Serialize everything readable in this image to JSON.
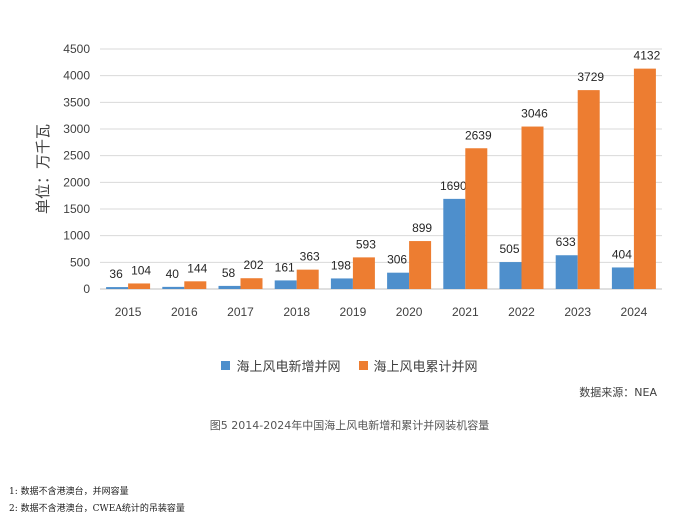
{
  "chart_data": {
    "type": "bar",
    "title": "",
    "xlabel": "",
    "ylabel": "单位：万千瓦",
    "ylim": [
      0,
      4500
    ],
    "yticks": [
      0,
      500,
      1000,
      1500,
      2000,
      2500,
      3000,
      3500,
      4000,
      4500
    ],
    "categories": [
      "2015",
      "2016",
      "2017",
      "2018",
      "2019",
      "2020",
      "2021",
      "2022",
      "2023",
      "2024"
    ],
    "series": [
      {
        "name": "海上风电新增并网",
        "color": "#4e8fcc",
        "values": [
          36,
          40,
          58,
          161,
          198,
          306,
          1690,
          505,
          633,
          404
        ]
      },
      {
        "name": "海上风电累计并网",
        "color": "#ed7d31",
        "values": [
          104,
          144,
          202,
          363,
          593,
          899,
          2639,
          3046,
          3729,
          4132
        ]
      }
    ],
    "grid": true,
    "legend_position": "bottom"
  },
  "source_note": "数据来源：NEA",
  "caption": "图5  2014-2024年中国海上风电新增和累计并网装机容量",
  "footnotes": [
    "1: 数据不含港澳台，并网容量",
    "2: 数据不含港澳台，CWEA统计的吊装容量"
  ]
}
